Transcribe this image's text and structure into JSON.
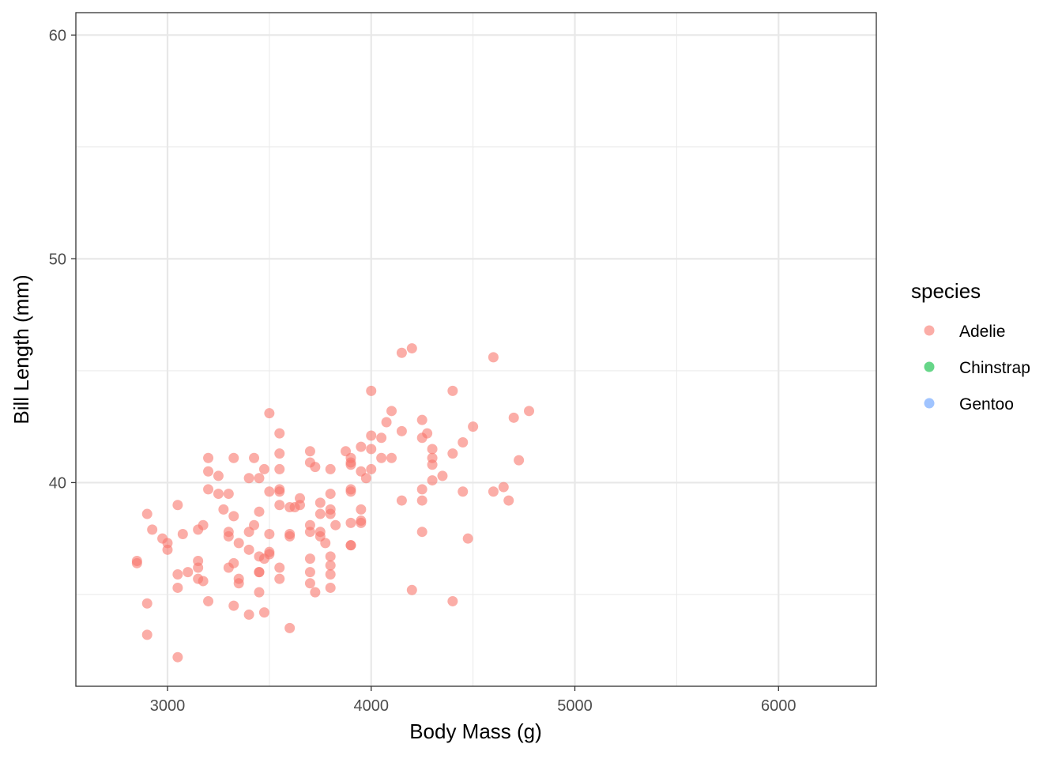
{
  "chart_data": {
    "type": "scatter",
    "xlabel": "Body Mass (g)",
    "ylabel": "Bill Length (mm)",
    "xlim": [
      2550,
      6480
    ],
    "ylim": [
      30.9,
      61.0
    ],
    "x_ticks": [
      3000,
      4000,
      5000,
      6000
    ],
    "x_minor_ticks": [
      3500,
      4500,
      5500
    ],
    "y_ticks": [
      40,
      50,
      60
    ],
    "y_minor_ticks": [
      35,
      45,
      55
    ],
    "grid": true,
    "legend": {
      "title": "species",
      "position": "right",
      "entries": [
        {
          "label": "Adelie",
          "color": "#F8766D"
        },
        {
          "label": "Chinstrap",
          "color": "#00BA38"
        },
        {
          "label": "Gentoo",
          "color": "#619CFF"
        }
      ]
    },
    "series": [
      {
        "name": "Adelie",
        "color": "#F8766D",
        "points": [
          [
            2850,
            36.5
          ],
          [
            2850,
            36.4
          ],
          [
            2900,
            38.6
          ],
          [
            2900,
            34.6
          ],
          [
            2900,
            33.2
          ],
          [
            2925,
            37.9
          ],
          [
            2975,
            37.5
          ],
          [
            3000,
            37.3
          ],
          [
            3000,
            37.0
          ],
          [
            3050,
            39.0
          ],
          [
            3050,
            35.9
          ],
          [
            3050,
            35.3
          ],
          [
            3050,
            32.2
          ],
          [
            3075,
            37.7
          ],
          [
            3100,
            36.0
          ],
          [
            3150,
            37.9
          ],
          [
            3150,
            36.5
          ],
          [
            3150,
            36.2
          ],
          [
            3150,
            35.7
          ],
          [
            3175,
            38.1
          ],
          [
            3175,
            35.6
          ],
          [
            3200,
            41.1
          ],
          [
            3200,
            40.5
          ],
          [
            3200,
            39.7
          ],
          [
            3200,
            34.7
          ],
          [
            3250,
            40.3
          ],
          [
            3250,
            39.5
          ],
          [
            3275,
            38.8
          ],
          [
            3300,
            39.5
          ],
          [
            3300,
            37.8
          ],
          [
            3300,
            37.6
          ],
          [
            3300,
            36.2
          ],
          [
            3325,
            41.1
          ],
          [
            3325,
            38.5
          ],
          [
            3325,
            36.4
          ],
          [
            3325,
            34.5
          ],
          [
            3350,
            37.3
          ],
          [
            3350,
            35.7
          ],
          [
            3350,
            35.5
          ],
          [
            3400,
            40.2
          ],
          [
            3400,
            37.8
          ],
          [
            3400,
            37.0
          ],
          [
            3400,
            34.1
          ],
          [
            3425,
            41.1
          ],
          [
            3425,
            38.1
          ],
          [
            3450,
            40.2
          ],
          [
            3450,
            38.7
          ],
          [
            3450,
            36.7
          ],
          [
            3450,
            36.0
          ],
          [
            3450,
            36.0
          ],
          [
            3450,
            35.1
          ],
          [
            3475,
            40.6
          ],
          [
            3475,
            36.6
          ],
          [
            3475,
            34.2
          ],
          [
            3500,
            43.1
          ],
          [
            3500,
            39.6
          ],
          [
            3500,
            37.7
          ],
          [
            3500,
            36.9
          ],
          [
            3500,
            36.8
          ],
          [
            3550,
            42.2
          ],
          [
            3550,
            41.3
          ],
          [
            3550,
            40.6
          ],
          [
            3550,
            39.7
          ],
          [
            3550,
            39.6
          ],
          [
            3550,
            39.0
          ],
          [
            3550,
            36.2
          ],
          [
            3550,
            35.7
          ],
          [
            3600,
            38.9
          ],
          [
            3600,
            37.7
          ],
          [
            3600,
            37.6
          ],
          [
            3600,
            33.5
          ],
          [
            3625,
            38.9
          ],
          [
            3650,
            39.3
          ],
          [
            3650,
            39.0
          ],
          [
            3700,
            41.4
          ],
          [
            3700,
            40.9
          ],
          [
            3700,
            38.1
          ],
          [
            3700,
            37.8
          ],
          [
            3700,
            36.6
          ],
          [
            3700,
            36.0
          ],
          [
            3700,
            35.5
          ],
          [
            3725,
            40.7
          ],
          [
            3725,
            35.1
          ],
          [
            3750,
            39.1
          ],
          [
            3750,
            38.6
          ],
          [
            3750,
            37.8
          ],
          [
            3750,
            37.6
          ],
          [
            3775,
            37.3
          ],
          [
            3800,
            40.6
          ],
          [
            3800,
            39.5
          ],
          [
            3800,
            38.8
          ],
          [
            3800,
            38.6
          ],
          [
            3800,
            36.7
          ],
          [
            3800,
            36.3
          ],
          [
            3800,
            35.9
          ],
          [
            3800,
            35.3
          ],
          [
            3825,
            38.1
          ],
          [
            3875,
            41.4
          ],
          [
            3900,
            41.1
          ],
          [
            3900,
            40.9
          ],
          [
            3900,
            40.8
          ],
          [
            3900,
            39.7
          ],
          [
            3900,
            39.6
          ],
          [
            3900,
            38.2
          ],
          [
            3900,
            37.2
          ],
          [
            3900,
            37.2
          ],
          [
            3950,
            41.6
          ],
          [
            3950,
            40.5
          ],
          [
            3950,
            38.8
          ],
          [
            3950,
            38.3
          ],
          [
            3950,
            38.2
          ],
          [
            3975,
            40.2
          ],
          [
            4000,
            44.1
          ],
          [
            4000,
            42.1
          ],
          [
            4000,
            41.5
          ],
          [
            4000,
            40.6
          ],
          [
            4050,
            42.0
          ],
          [
            4050,
            41.1
          ],
          [
            4075,
            42.7
          ],
          [
            4100,
            43.2
          ],
          [
            4100,
            41.1
          ],
          [
            4150,
            45.8
          ],
          [
            4150,
            42.3
          ],
          [
            4150,
            39.2
          ],
          [
            4200,
            46.0
          ],
          [
            4200,
            35.2
          ],
          [
            4250,
            42.8
          ],
          [
            4250,
            42.0
          ],
          [
            4250,
            39.7
          ],
          [
            4250,
            39.2
          ],
          [
            4250,
            37.8
          ],
          [
            4275,
            42.2
          ],
          [
            4300,
            41.5
          ],
          [
            4300,
            41.1
          ],
          [
            4300,
            40.8
          ],
          [
            4300,
            40.1
          ],
          [
            4350,
            40.3
          ],
          [
            4400,
            44.1
          ],
          [
            4400,
            41.3
          ],
          [
            4400,
            34.7
          ],
          [
            4450,
            41.8
          ],
          [
            4450,
            39.6
          ],
          [
            4475,
            37.5
          ],
          [
            4500,
            42.5
          ],
          [
            4600,
            45.6
          ],
          [
            4600,
            39.6
          ],
          [
            4650,
            39.8
          ],
          [
            4675,
            39.2
          ],
          [
            4700,
            42.9
          ],
          [
            4725,
            41.0
          ],
          [
            4775,
            43.2
          ]
        ]
      }
    ]
  }
}
